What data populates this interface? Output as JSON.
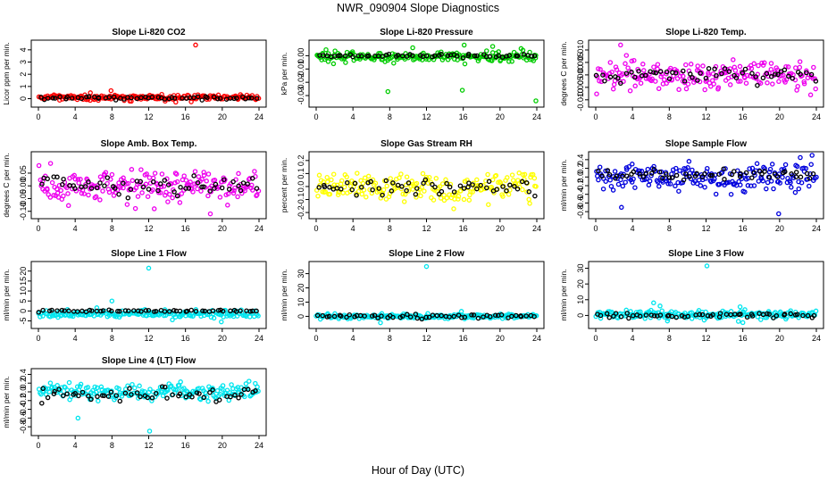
{
  "title": "NWR_090904  Slope Diagnostics",
  "xlabel": "Hour of Day (UTC)",
  "chart_data": [
    {
      "type": "scatter",
      "title": "Slope Li-820 CO2",
      "ylabel": "Licor ppm per min.",
      "xlim": [
        0,
        24
      ],
      "xticks": [
        0,
        4,
        8,
        12,
        16,
        20,
        24
      ],
      "ylim": [
        -0.4,
        4.5
      ],
      "yticks": [
        0,
        1,
        2,
        3,
        4
      ],
      "series": [
        {
          "color": "#ff0000",
          "center": 0.1,
          "spread": 0.17
        },
        {
          "color": "#000000",
          "center": 0.05,
          "spread": 0.08
        }
      ],
      "outliers": [
        {
          "x": 17.1,
          "y": 4.4
        },
        {
          "x": 7.9,
          "y": 0.65
        }
      ]
    },
    {
      "type": "scatter",
      "title": "Slope Li-820 Pressure",
      "ylabel": "kPa per min.",
      "xlim": [
        0,
        24
      ],
      "xticks": [
        0,
        4,
        8,
        12,
        16,
        20,
        24
      ],
      "ylim": [
        -0.036,
        0.009
      ],
      "yticks": [
        -0.03,
        -0.02,
        -0.01,
        0.0
      ],
      "series": [
        {
          "color": "#00cc00",
          "center": -0.001,
          "spread": 0.003
        },
        {
          "color": "#000000",
          "center": 0.0,
          "spread": 0.001
        }
      ],
      "outliers": [
        {
          "x": 7.8,
          "y": -0.027
        },
        {
          "x": 15.9,
          "y": -0.026
        },
        {
          "x": 23.9,
          "y": -0.034
        },
        {
          "x": 10.5,
          "y": 0.006
        },
        {
          "x": 16.1,
          "y": 0.008
        },
        {
          "x": 19.2,
          "y": 0.007
        }
      ]
    },
    {
      "type": "scatter",
      "title": "Slope Li-820 Temp.",
      "ylabel": "degrees C per min.",
      "xlim": [
        0,
        24
      ],
      "xticks": [
        0,
        4,
        8,
        12,
        16,
        20,
        24
      ],
      "ylim": [
        -0.0115,
        0.0125
      ],
      "yticks": [
        -0.01,
        -0.005,
        0.0,
        0.005,
        0.01
      ],
      "series": [
        {
          "color": "#ee00ee",
          "center": 0.0,
          "spread": 0.004
        },
        {
          "color": "#000000",
          "center": 0.0,
          "spread": 0.002
        }
      ],
      "outliers": [
        {
          "x": 2.7,
          "y": 0.012
        }
      ]
    },
    {
      "type": "scatter",
      "title": "Slope Amb. Box Temp.",
      "ylabel": "degrees C per min.",
      "xlim": [
        0,
        24
      ],
      "xticks": [
        0,
        4,
        8,
        12,
        16,
        20,
        24
      ],
      "ylim": [
        -0.115,
        0.12
      ],
      "yticks": [
        -0.1,
        -0.05,
        0.0,
        0.05
      ],
      "series": [
        {
          "color": "#ee00ee",
          "center": 0.0,
          "spread": 0.04
        },
        {
          "color": "#000000",
          "center": 0.0,
          "spread": 0.025
        }
      ],
      "outliers": [
        {
          "x": 18.7,
          "y": -0.11
        },
        {
          "x": 12.6,
          "y": -0.09
        }
      ]
    },
    {
      "type": "scatter",
      "title": "Slope Gas Stream RH",
      "ylabel": "percent per min.",
      "xlim": [
        0,
        24
      ],
      "xticks": [
        0,
        4,
        8,
        12,
        16,
        20,
        24
      ],
      "ylim": [
        -0.22,
        0.24
      ],
      "yticks": [
        -0.2,
        -0.1,
        0.0,
        0.1,
        0.2
      ],
      "series": [
        {
          "color": "#ffff00",
          "center": 0.0,
          "spread": 0.08
        },
        {
          "color": "#000000",
          "center": 0.0,
          "spread": 0.05
        }
      ],
      "outliers": []
    },
    {
      "type": "scatter",
      "title": "Slope Sample Flow",
      "ylabel": "ml/min per min.",
      "xlim": [
        0,
        24
      ],
      "xticks": [
        0,
        4,
        8,
        12,
        16,
        20,
        24
      ],
      "ylim": [
        -0.88,
        0.5
      ],
      "yticks": [
        -0.8,
        -0.6,
        -0.4,
        -0.2,
        0.0,
        0.2,
        0.4
      ],
      "series": [
        {
          "color": "#0000dd",
          "center": 0.0,
          "spread": 0.22
        },
        {
          "color": "#000000",
          "center": 0.05,
          "spread": 0.1
        }
      ],
      "outliers": [
        {
          "x": 19.9,
          "y": -0.85
        },
        {
          "x": 2.8,
          "y": -0.7
        }
      ]
    },
    {
      "type": "scatter",
      "title": "Slope Line 1 Flow",
      "ylabel": "ml/min per min.",
      "xlim": [
        0,
        24
      ],
      "xticks": [
        0,
        4,
        8,
        12,
        16,
        20,
        24
      ],
      "ylim": [
        -7,
        23
      ],
      "yticks": [
        -5,
        0,
        5,
        10,
        15,
        20
      ],
      "series": [
        {
          "color": "#00e5ee",
          "center": -1.5,
          "spread": 1.3
        },
        {
          "color": "#000000",
          "center": 0.0,
          "spread": 0.3
        }
      ],
      "outliers": [
        {
          "x": 12.0,
          "y": 21.5
        },
        {
          "x": 8.0,
          "y": 5.0
        },
        {
          "x": 19.9,
          "y": -5.5
        }
      ]
    },
    {
      "type": "scatter",
      "title": "Slope Line 2 Flow",
      "ylabel": "ml/min per min.",
      "xlim": [
        0,
        24
      ],
      "xticks": [
        0,
        4,
        8,
        12,
        16,
        20,
        24
      ],
      "ylim": [
        -6,
        36
      ],
      "yticks": [
        0,
        10,
        20,
        30
      ],
      "series": [
        {
          "color": "#00e5ee",
          "center": 0.0,
          "spread": 1.2
        },
        {
          "color": "#000000",
          "center": 0.0,
          "spread": 1.0
        }
      ],
      "outliers": [
        {
          "x": 12.0,
          "y": 35
        },
        {
          "x": 7.0,
          "y": -4.5
        },
        {
          "x": 15.8,
          "y": 3.5
        }
      ]
    },
    {
      "type": "scatter",
      "title": "Slope Line 3 Flow",
      "ylabel": "ml/min per min.",
      "xlim": [
        0,
        24
      ],
      "xticks": [
        0,
        4,
        8,
        12,
        16,
        20,
        24
      ],
      "ylim": [
        -6,
        32
      ],
      "yticks": [
        0,
        10,
        20,
        30
      ],
      "series": [
        {
          "color": "#00e5ee",
          "center": 0.5,
          "spread": 1.8
        },
        {
          "color": "#000000",
          "center": 0.0,
          "spread": 1.2
        }
      ],
      "outliers": [
        {
          "x": 12.1,
          "y": 31.5
        },
        {
          "x": 6.3,
          "y": 8.0
        },
        {
          "x": 7.0,
          "y": 6.0
        },
        {
          "x": 15.7,
          "y": 5.5
        },
        {
          "x": 16.0,
          "y": -4.5
        },
        {
          "x": 7.8,
          "y": -3.5
        }
      ]
    },
    {
      "type": "scatter",
      "title": "Slope Line 4 (LT) Flow",
      "ylabel": "ml/min per min.",
      "xlim": [
        0,
        24
      ],
      "xticks": [
        0,
        4,
        8,
        12,
        16,
        20,
        24
      ],
      "ylim": [
        -0.92,
        0.45
      ],
      "yticks": [
        -0.8,
        -0.6,
        -0.4,
        -0.2,
        0.0,
        0.2,
        0.4
      ],
      "series": [
        {
          "color": "#00e5ee",
          "center": 0.0,
          "spread": 0.14
        },
        {
          "color": "#000000",
          "center": -0.05,
          "spread": 0.13
        }
      ],
      "outliers": [
        {
          "x": 12.1,
          "y": -0.9
        },
        {
          "x": 4.3,
          "y": -0.6
        }
      ]
    }
  ]
}
